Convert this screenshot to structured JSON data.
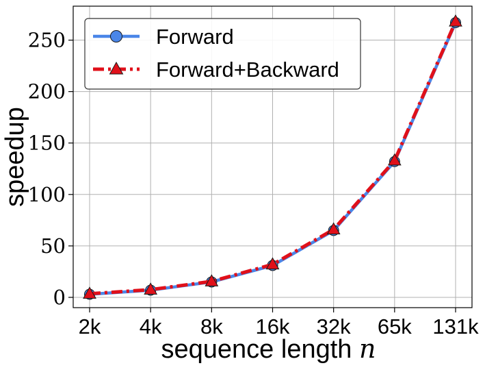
{
  "chart_data": {
    "type": "line",
    "xlabel": "sequence length",
    "xlabel_var": "n",
    "ylabel": "speedup",
    "categories": [
      "2k",
      "4k",
      "8k",
      "16k",
      "32k",
      "65k",
      "131k"
    ],
    "ylim": [
      -10,
      283
    ],
    "yticks": [
      0,
      50,
      100,
      150,
      200,
      250
    ],
    "grid": true,
    "legend": "top-left",
    "series": [
      {
        "name": "Forward",
        "values": [
          3,
          7,
          15,
          31,
          65,
          132,
          267
        ],
        "color": "#4a86e8",
        "marker": "circle",
        "line_style": "solid"
      },
      {
        "name": "Forward+Backward",
        "values": [
          3.5,
          7.5,
          15.5,
          32,
          66,
          133,
          268
        ],
        "color": "#e0101a",
        "marker": "triangle",
        "line_style": "dashdot"
      }
    ]
  }
}
